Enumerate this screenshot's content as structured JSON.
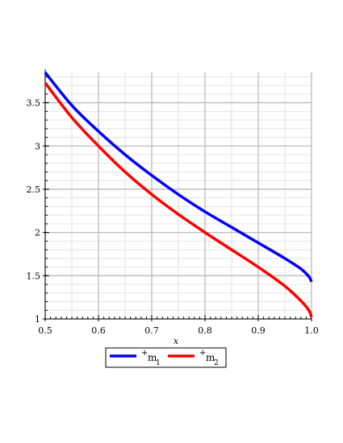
{
  "chart_data": {
    "type": "line",
    "title": "",
    "xlabel": "x",
    "ylabel": "",
    "xlim": [
      0.5,
      1.0
    ],
    "ylim": [
      1,
      3.85
    ],
    "grid": true,
    "legend_position": "bottom",
    "x_ticks": [
      0.5,
      0.6,
      0.7,
      0.8,
      0.9,
      1.0
    ],
    "x_tick_labels": [
      "0.5",
      "0.6",
      "0.7",
      "0.8",
      "0.9",
      "1.0"
    ],
    "y_ticks": [
      1,
      1.5,
      2,
      2.5,
      3,
      3.5
    ],
    "y_tick_labels": [
      "1",
      "1.5",
      "2",
      "2.5",
      "3",
      "3.5"
    ],
    "series": [
      {
        "legend_prefix": "+",
        "name_base": "m",
        "name_subscript": "1",
        "color": "#0000ff",
        "x": [
          0.5,
          0.55,
          0.6,
          0.65,
          0.7,
          0.75,
          0.8,
          0.85,
          0.9,
          0.95,
          0.98,
          0.995,
          1.0
        ],
        "y": [
          3.85,
          3.47,
          3.17,
          2.9,
          2.66,
          2.44,
          2.24,
          2.06,
          1.88,
          1.7,
          1.58,
          1.49,
          1.43
        ]
      },
      {
        "legend_prefix": "+",
        "name_base": "m",
        "name_subscript": "2",
        "color": "#ff0000",
        "x": [
          0.5,
          0.55,
          0.6,
          0.65,
          0.7,
          0.75,
          0.8,
          0.85,
          0.9,
          0.95,
          0.98,
          0.995,
          1.0
        ],
        "y": [
          3.73,
          3.33,
          3.0,
          2.7,
          2.44,
          2.21,
          2.0,
          1.8,
          1.6,
          1.38,
          1.21,
          1.1,
          1.02
        ]
      }
    ]
  }
}
